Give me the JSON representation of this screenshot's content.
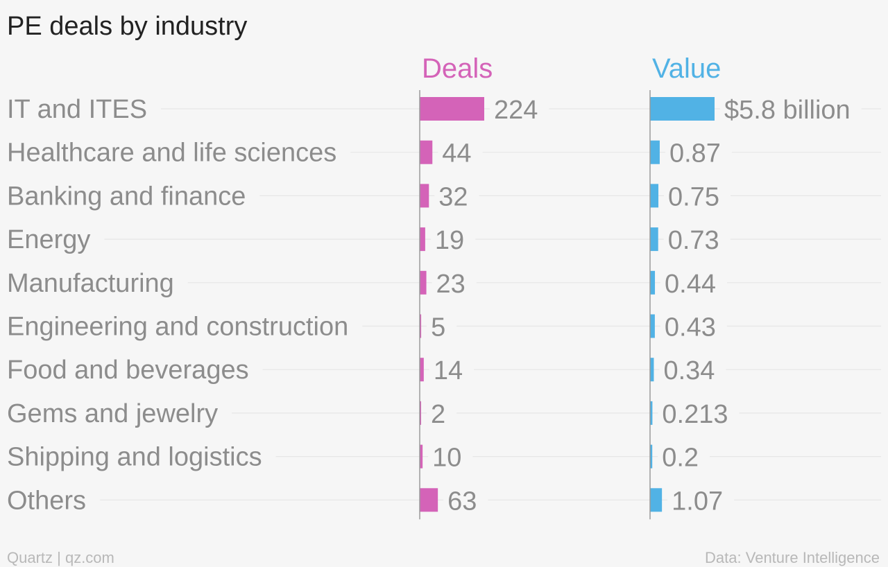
{
  "chart_data": {
    "type": "bar",
    "title": "PE deals by industry",
    "categories": [
      "IT and ITES",
      "Healthcare and life sciences",
      "Banking and finance",
      "Energy",
      "Manufacturing",
      "Engineering and construction",
      "Food and beverages",
      "Gems and jewelry",
      "Shipping and logistics",
      "Others"
    ],
    "series": [
      {
        "name": "Deals",
        "color": "#d463b8",
        "values": [
          224,
          44,
          32,
          19,
          23,
          5,
          14,
          2,
          10,
          63
        ],
        "labels": [
          "224",
          "44",
          "32",
          "19",
          "23",
          "5",
          "14",
          "2",
          "10",
          "63"
        ],
        "xlim": [
          0,
          224
        ]
      },
      {
        "name": "Value",
        "color": "#51b2e5",
        "values": [
          5.8,
          0.87,
          0.75,
          0.73,
          0.44,
          0.43,
          0.34,
          0.213,
          0.2,
          1.07
        ],
        "labels": [
          "$5.8 billion",
          "0.87",
          "0.75",
          "0.73",
          "0.44",
          "0.43",
          "0.34",
          "0.213",
          "0.2",
          "1.07"
        ],
        "xlim": [
          0,
          5.8
        ]
      }
    ],
    "grid": true,
    "legend": "column headers above bars"
  },
  "footer": {
    "source_left": "Quartz | qz.com",
    "source_right": "Data: Venture Intelligence"
  }
}
